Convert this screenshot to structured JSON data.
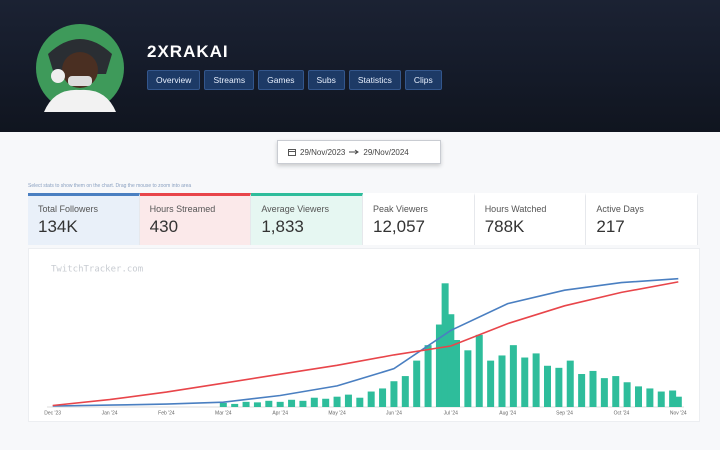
{
  "header": {
    "name": "2XRAKAI",
    "tabs": [
      "Overview",
      "Streams",
      "Games",
      "Subs",
      "Statistics",
      "Clips"
    ]
  },
  "date_range": {
    "start": "29/Nov/2023",
    "end": "29/Nov/2024"
  },
  "hint": "Select stats to show them on the chart. Drag the mouse to zoom into area",
  "stats": [
    {
      "label": "Total Followers",
      "value": "134K",
      "color": "#4a7fc1",
      "bg": "#e9f0f9"
    },
    {
      "label": "Hours Streamed",
      "value": "430",
      "color": "#e8454a",
      "bg": "#fbe9ea"
    },
    {
      "label": "Average Viewers",
      "value": "1,833",
      "color": "#2ebd9b",
      "bg": "#e6f7f2"
    },
    {
      "label": "Peak Viewers",
      "value": "12,057"
    },
    {
      "label": "Hours Watched",
      "value": "788K"
    },
    {
      "label": "Active Days",
      "value": "217"
    }
  ],
  "chart_data": {
    "type": "line",
    "watermark": "TwitchTracker.com",
    "xlim": [
      -0.1,
      11.1
    ],
    "xticks": [
      {
        "value": 0,
        "label": "Dec '23"
      },
      {
        "value": 1,
        "label": "Jan '24"
      },
      {
        "value": 2,
        "label": "Feb '24"
      },
      {
        "value": 3,
        "label": "Mar '24"
      },
      {
        "value": 4,
        "label": "Apr '24"
      },
      {
        "value": 5,
        "label": "May '24"
      },
      {
        "value": 6,
        "label": "Jun '24"
      },
      {
        "value": 7,
        "label": "Jul '24"
      },
      {
        "value": 8,
        "label": "Aug '24"
      },
      {
        "value": 9,
        "label": "Sep '24"
      },
      {
        "value": 10,
        "label": "Oct '24"
      },
      {
        "value": 11,
        "label": "Nov '24"
      }
    ],
    "series": [
      {
        "type": "bar",
        "color": "#2ebd9b",
        "ylim": [
          0,
          13000
        ],
        "x": [
          3.0,
          3.2,
          3.4,
          3.6,
          3.8,
          4.0,
          4.2,
          4.4,
          4.6,
          4.8,
          5.0,
          5.2,
          5.4,
          5.6,
          5.8,
          6.0,
          6.2,
          6.4,
          6.6,
          6.8,
          6.9,
          7.0,
          7.1,
          7.3,
          7.5,
          7.7,
          7.9,
          8.1,
          8.3,
          8.5,
          8.7,
          8.9,
          9.1,
          9.3,
          9.5,
          9.7,
          9.9,
          10.1,
          10.3,
          10.5,
          10.7,
          10.9,
          11.0
        ],
        "values": [
          400,
          300,
          500,
          450,
          600,
          500,
          700,
          600,
          900,
          800,
          1000,
          1200,
          900,
          1500,
          1800,
          2500,
          3000,
          4500,
          6000,
          8000,
          12000,
          9000,
          6500,
          5500,
          7000,
          4500,
          5000,
          6000,
          4800,
          5200,
          4000,
          3800,
          4500,
          3200,
          3500,
          2800,
          3000,
          2400,
          2000,
          1800,
          1500,
          1600,
          1000
        ]
      },
      {
        "type": "line",
        "color": "#4a7fc1",
        "ylim": [
          0,
          140000
        ],
        "x": [
          0,
          1,
          2,
          3,
          4,
          5,
          6,
          7,
          8,
          9,
          10,
          11
        ],
        "values": [
          1000,
          2000,
          3000,
          5000,
          12000,
          22000,
          40000,
          80000,
          108000,
          122000,
          130000,
          134000
        ]
      },
      {
        "type": "line",
        "color": "#e8454a",
        "ylim": [
          0,
          450
        ],
        "x": [
          0,
          1,
          2,
          3,
          4,
          5,
          6,
          7,
          8,
          9,
          10,
          11
        ],
        "values": [
          5,
          25,
          50,
          80,
          110,
          140,
          175,
          205,
          280,
          340,
          385,
          420
        ]
      }
    ]
  }
}
